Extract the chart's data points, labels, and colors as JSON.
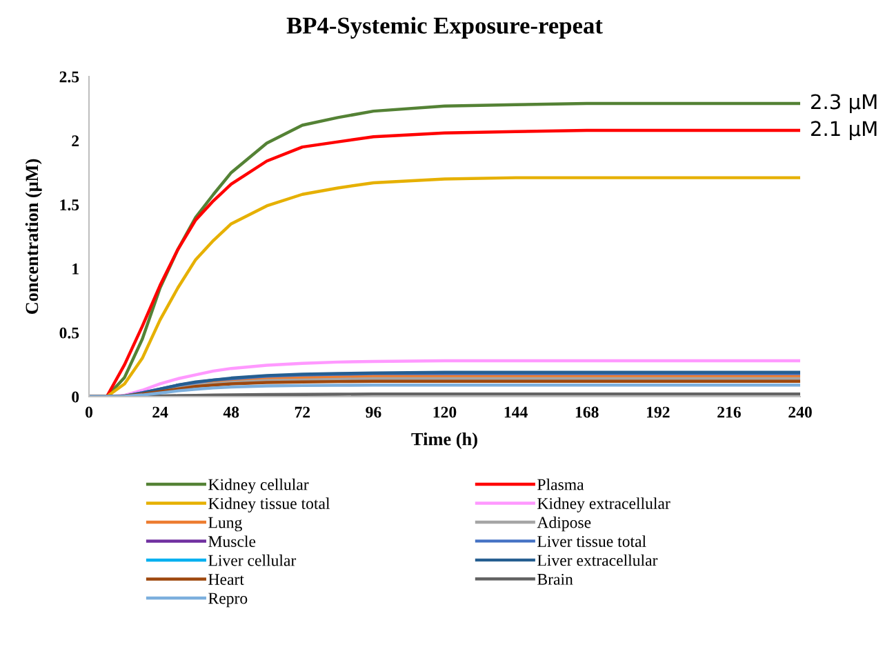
{
  "chart_data": {
    "type": "line",
    "title": "BP4-Systemic Exposure-repeat",
    "xlabel": "Time (h)",
    "ylabel": "Concentration (μM)",
    "x": [
      0,
      6,
      12,
      18,
      24,
      30,
      36,
      42,
      48,
      60,
      72,
      84,
      96,
      120,
      144,
      168,
      192,
      216,
      240
    ],
    "xlim": [
      0,
      240
    ],
    "xticks": [
      0,
      24,
      48,
      72,
      96,
      120,
      144,
      168,
      192,
      216,
      240
    ],
    "ylim": [
      0,
      2.5
    ],
    "yticks": [
      0,
      0.5,
      1,
      1.5,
      2,
      2.5
    ],
    "grid": false,
    "legend": "bottom",
    "marker": "none",
    "line_style": "solid",
    "annotations": [
      {
        "text": "2.3 μM",
        "x": 240,
        "y": 2.29
      },
      {
        "text": "2.1 μM",
        "x": 240,
        "y": 2.08
      }
    ],
    "series": [
      {
        "name": "Kidney cellular",
        "color": "#548235",
        "values": [
          0,
          0,
          0.15,
          0.45,
          0.85,
          1.15,
          1.4,
          1.58,
          1.75,
          1.98,
          2.12,
          2.18,
          2.23,
          2.27,
          2.28,
          2.29,
          2.29,
          2.29,
          2.29
        ]
      },
      {
        "name": "Plasma",
        "color": "#ff0000",
        "values": [
          0,
          0,
          0.25,
          0.55,
          0.87,
          1.15,
          1.38,
          1.53,
          1.66,
          1.84,
          1.95,
          1.99,
          2.03,
          2.06,
          2.07,
          2.08,
          2.08,
          2.08,
          2.08
        ]
      },
      {
        "name": "Kidney tissue total",
        "color": "#e6b000",
        "values": [
          0,
          0,
          0.1,
          0.3,
          0.6,
          0.85,
          1.07,
          1.22,
          1.35,
          1.49,
          1.58,
          1.63,
          1.67,
          1.7,
          1.71,
          1.71,
          1.71,
          1.71,
          1.71
        ]
      },
      {
        "name": "Kidney extracellular",
        "color": "#ff99ff",
        "values": [
          0,
          0,
          0.01,
          0.05,
          0.1,
          0.14,
          0.17,
          0.2,
          0.22,
          0.245,
          0.26,
          0.27,
          0.275,
          0.28,
          0.28,
          0.28,
          0.28,
          0.28,
          0.28
        ]
      },
      {
        "name": "Lung",
        "color": "#ed7d31",
        "values": [
          0,
          0,
          0.005,
          0.025,
          0.05,
          0.08,
          0.1,
          0.115,
          0.13,
          0.145,
          0.15,
          0.155,
          0.16,
          0.16,
          0.16,
          0.16,
          0.16,
          0.16,
          0.16
        ]
      },
      {
        "name": "Adipose",
        "color": "#a5a5a5",
        "values": [
          0,
          0,
          0.004,
          0.02,
          0.045,
          0.07,
          0.09,
          0.1,
          0.11,
          0.125,
          0.13,
          0.135,
          0.14,
          0.14,
          0.14,
          0.14,
          0.14,
          0.14,
          0.14
        ]
      },
      {
        "name": "Muscle",
        "color": "#7030a0",
        "values": [
          null,
          null,
          null,
          null,
          null,
          null,
          null,
          null,
          null,
          null,
          null,
          null,
          null,
          null,
          null,
          null,
          null,
          null,
          null
        ]
      },
      {
        "name": "Liver tissue total",
        "color": "#4472c4",
        "values": [
          0,
          0,
          0.005,
          0.03,
          0.06,
          0.09,
          0.11,
          0.13,
          0.14,
          0.16,
          0.17,
          0.175,
          0.18,
          0.18,
          0.18,
          0.18,
          0.18,
          0.18,
          0.18
        ]
      },
      {
        "name": "Liver cellular",
        "color": "#00b0f0",
        "values": [
          null,
          null,
          null,
          null,
          null,
          null,
          null,
          null,
          null,
          null,
          null,
          null,
          null,
          null,
          null,
          null,
          null,
          null,
          null
        ]
      },
      {
        "name": "Liver extracellular",
        "color": "#255e91",
        "values": [
          0,
          0,
          0.005,
          0.03,
          0.06,
          0.09,
          0.115,
          0.13,
          0.145,
          0.165,
          0.175,
          0.18,
          0.185,
          0.19,
          0.19,
          0.19,
          0.19,
          0.19,
          0.19
        ]
      },
      {
        "name": "Heart",
        "color": "#9e480e",
        "values": [
          0,
          0,
          0.004,
          0.02,
          0.04,
          0.06,
          0.08,
          0.09,
          0.1,
          0.11,
          0.115,
          0.118,
          0.12,
          0.12,
          0.12,
          0.12,
          0.12,
          0.12,
          0.12
        ]
      },
      {
        "name": "Brain",
        "color": "#636363",
        "values": [
          0,
          0,
          0,
          0.002,
          0.005,
          0.008,
          0.01,
          0.012,
          0.014,
          0.016,
          0.018,
          0.019,
          0.02,
          0.02,
          0.02,
          0.02,
          0.02,
          0.02,
          0.02
        ]
      },
      {
        "name": "Repro",
        "color": "#7cafdd",
        "values": [
          0,
          0,
          0.003,
          0.013,
          0.028,
          0.045,
          0.058,
          0.068,
          0.075,
          0.083,
          0.087,
          0.089,
          0.09,
          0.09,
          0.09,
          0.09,
          0.09,
          0.09,
          0.09
        ]
      }
    ]
  }
}
